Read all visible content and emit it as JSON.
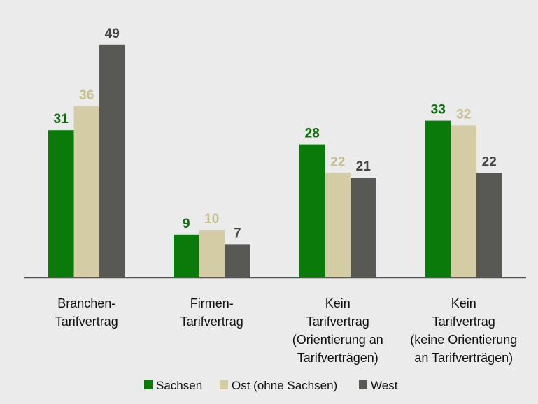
{
  "chart_data": {
    "type": "bar",
    "categories": [
      [
        "Branchen-",
        "Tarifvertrag"
      ],
      [
        "Firmen-",
        "Tarifvertrag"
      ],
      [
        "Kein",
        "Tarifvertrag",
        "(Orientierung an",
        "Tarifverträgen)"
      ],
      [
        "Kein",
        "Tarifvertrag",
        "(keine Orientierung",
        "an Tarifverträgen)"
      ]
    ],
    "series": [
      {
        "name": "Sachsen",
        "values": [
          31,
          9,
          28,
          33
        ],
        "color": "#0a7a0a",
        "label_color": "#0a6e0a"
      },
      {
        "name": "Ost (ohne Sachsen)",
        "values": [
          36,
          10,
          22,
          32
        ],
        "color": "#d3cca4",
        "label_color": "#c8bf8e"
      },
      {
        "name": "West",
        "values": [
          49,
          7,
          21,
          22
        ],
        "color": "#585855",
        "label_color": "#444444"
      }
    ],
    "ylim": [
      0,
      50
    ],
    "grid": false,
    "legend_position": "bottom",
    "title": "",
    "xlabel": "",
    "ylabel": ""
  }
}
